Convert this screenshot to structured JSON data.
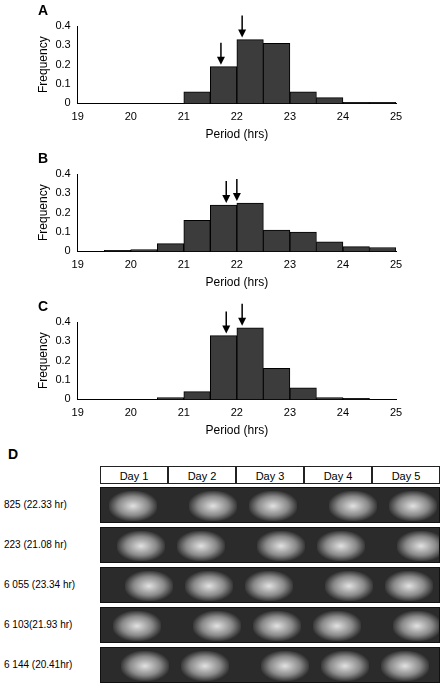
{
  "chart_data": [
    {
      "panel": "A",
      "type": "histogram",
      "y_label": "Frequency",
      "x_label": "Period (hrs)",
      "bins": [
        19,
        19.5,
        20,
        20.5,
        21,
        21.5,
        22,
        22.5,
        23,
        23.5,
        24,
        24.5,
        25
      ],
      "counts": [
        0,
        0,
        0,
        0,
        0.06,
        0.19,
        0.33,
        0.31,
        0.06,
        0.03,
        0.005,
        0.005
      ],
      "arrows": [
        21.7,
        22.1
      ],
      "color": "#3c3c3c",
      "xlim": [
        19,
        25
      ],
      "xticks": [
        19,
        20,
        21,
        22,
        23,
        24,
        25
      ],
      "ylim": [
        0,
        0.4
      ],
      "yticks": [
        0,
        0.1,
        0.2,
        0.3,
        0.4
      ],
      "grid": false
    },
    {
      "panel": "B",
      "type": "histogram",
      "y_label": "Frequency",
      "x_label": "Period (hrs)",
      "bins": [
        19,
        19.5,
        20,
        20.5,
        21,
        21.5,
        22,
        22.5,
        23,
        23.5,
        24,
        24.5,
        25
      ],
      "counts": [
        0,
        0.005,
        0.01,
        0.04,
        0.16,
        0.24,
        0.25,
        0.11,
        0.1,
        0.05,
        0.025,
        0.02
      ],
      "arrows": [
        21.8,
        22.0
      ],
      "color": "#3c3c3c",
      "xlim": [
        19,
        25
      ],
      "xticks": [
        19,
        20,
        21,
        22,
        23,
        24,
        25
      ],
      "ylim": [
        0,
        0.4
      ],
      "yticks": [
        0,
        0.1,
        0.2,
        0.3,
        0.4
      ],
      "grid": false
    },
    {
      "panel": "C",
      "type": "histogram",
      "y_label": "Frequency",
      "x_label": "Period (hrs)",
      "bins": [
        19,
        19.5,
        20,
        20.5,
        21,
        21.5,
        22,
        22.5,
        23,
        23.5,
        24,
        24.5,
        25
      ],
      "counts": [
        0,
        0,
        0,
        0.01,
        0.04,
        0.33,
        0.37,
        0.16,
        0.06,
        0.01,
        0.005,
        0
      ],
      "arrows": [
        21.8,
        22.1
      ],
      "color": "#3c3c3c",
      "xlim": [
        19,
        25
      ],
      "xticks": [
        19,
        20,
        21,
        22,
        23,
        24,
        25
      ],
      "ylim": [
        0,
        0.4
      ],
      "yticks": [
        0,
        0.1,
        0.2,
        0.3,
        0.4
      ],
      "grid": false
    }
  ],
  "panel_d": {
    "letter": "D",
    "columns": [
      "Day 1",
      "Day 2",
      "Day 3",
      "Day 4",
      "Day 5"
    ],
    "rows": [
      "825 (22.33 hr)",
      "223 (21.08 hr)",
      "6 055 (23.34 hr)",
      "6 103(21.93 hr)",
      "6 144 (20.41hr)"
    ]
  }
}
